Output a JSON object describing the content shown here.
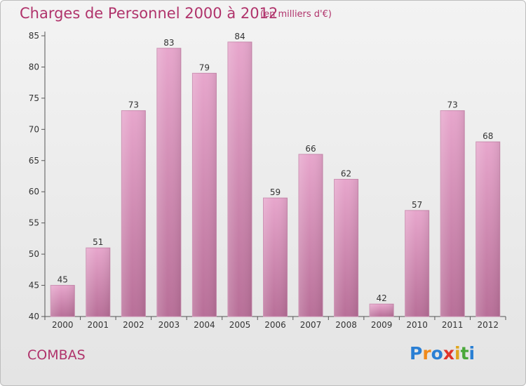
{
  "header": {
    "title": "Charges de Personnel 2000 à 2012",
    "subtitle": "(en milliers d'€)"
  },
  "footer": {
    "commune": "COMBAS",
    "brand": "Proxiti",
    "brand_letters": [
      {
        "ch": "P",
        "color": "#2a7fd4"
      },
      {
        "ch": "r",
        "color": "#f08a1c"
      },
      {
        "ch": "o",
        "color": "#2a7fd4"
      },
      {
        "ch": "x",
        "color": "#e0342a"
      },
      {
        "ch": "i",
        "color": "#e0a51c"
      },
      {
        "ch": "t",
        "color": "#4aa83a"
      },
      {
        "ch": "i",
        "color": "#2a7fd4"
      }
    ]
  },
  "colors": {
    "accent": "#b0336b",
    "bar_light": "#e7a6cc",
    "bar_dark": "#b86f98"
  },
  "chart_data": {
    "type": "bar",
    "title": "Charges de Personnel 2000 à 2012",
    "subtitle": "(en milliers d'€)",
    "categories": [
      "2000",
      "2001",
      "2002",
      "2003",
      "2004",
      "2005",
      "2006",
      "2007",
      "2008",
      "2009",
      "2010",
      "2011",
      "2012"
    ],
    "values": [
      45,
      51,
      73,
      83,
      79,
      84,
      59,
      66,
      62,
      42,
      57,
      73,
      68
    ],
    "ylim": [
      40,
      85
    ],
    "yticks": [
      40,
      45,
      50,
      55,
      60,
      65,
      70,
      75,
      80,
      85
    ],
    "grid": false,
    "data_labels": true
  }
}
